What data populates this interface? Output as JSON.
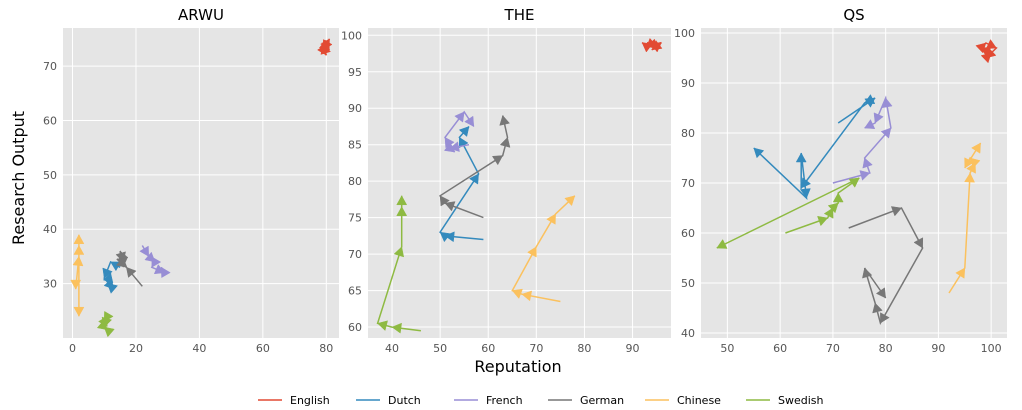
{
  "chart_data": [
    {
      "type": "line",
      "title": "ARWU",
      "xlim": [
        -3,
        84
      ],
      "ylim": [
        20,
        77
      ],
      "xticks": [
        0,
        20,
        40,
        60,
        80
      ],
      "yticks": [
        30,
        40,
        50,
        60,
        70
      ],
      "series": [
        {
          "name": "English",
          "x": [
            80,
            81,
            79,
            80,
            79,
            81
          ],
          "y": [
            74,
            75,
            73,
            72,
            74,
            73
          ]
        },
        {
          "name": "Dutch",
          "x": [
            15,
            12,
            10,
            13,
            11,
            12
          ],
          "y": [
            33,
            34,
            31,
            29,
            30,
            32
          ]
        },
        {
          "name": "French",
          "x": [
            22,
            24,
            26,
            25,
            29,
            28
          ],
          "y": [
            37,
            35,
            34,
            33,
            32,
            33
          ]
        },
        {
          "name": "German",
          "x": [
            22,
            17,
            15,
            16,
            14,
            17
          ],
          "y": [
            29.5,
            33,
            36,
            34,
            34.5,
            33
          ]
        },
        {
          "name": "Chinese",
          "x": [
            1,
            1,
            2,
            2,
            2,
            2
          ],
          "y": [
            30,
            29,
            35,
            37,
            39,
            24
          ]
        },
        {
          "name": "Swedish",
          "x": [
            11,
            10,
            11,
            10,
            11,
            10
          ],
          "y": [
            24,
            23,
            24,
            22,
            21.5,
            22
          ]
        }
      ]
    },
    {
      "type": "line",
      "title": "THE",
      "xlim": [
        35,
        98
      ],
      "ylim": [
        58.5,
        101
      ],
      "xticks": [
        40,
        50,
        60,
        70,
        80,
        90
      ],
      "yticks": [
        60,
        65,
        70,
        75,
        80,
        85,
        90,
        95,
        100
      ],
      "series": [
        {
          "name": "English",
          "x": [
            93,
            95,
            94,
            96,
            93,
            92
          ],
          "y": [
            99,
            98.5,
            98,
            99,
            98.5,
            99
          ]
        },
        {
          "name": "Dutch",
          "x": [
            59,
            51,
            50,
            58,
            54,
            56
          ],
          "y": [
            72,
            72.5,
            73,
            81,
            86,
            87.5
          ]
        },
        {
          "name": "French",
          "x": [
            56,
            52,
            53,
            51,
            55,
            57
          ],
          "y": [
            85,
            84.5,
            84,
            86,
            89.5,
            87.5
          ]
        },
        {
          "name": "German",
          "x": [
            59,
            51,
            50,
            63,
            64,
            63
          ],
          "y": [
            75,
            77,
            78,
            83.5,
            86,
            89
          ]
        },
        {
          "name": "Chinese",
          "x": [
            75,
            67,
            65,
            70,
            74,
            78
          ],
          "y": [
            63.5,
            64.5,
            65,
            71,
            75.5,
            78
          ]
        },
        {
          "name": "Swedish",
          "x": [
            46,
            40,
            37,
            42,
            42,
            42
          ],
          "y": [
            59.5,
            60,
            60.5,
            71,
            76.5,
            78
          ]
        }
      ]
    },
    {
      "type": "line",
      "title": "QS",
      "xlim": [
        45,
        103
      ],
      "ylim": [
        39,
        101
      ],
      "xticks": [
        50,
        60,
        70,
        80,
        90,
        100
      ],
      "yticks": [
        40,
        50,
        60,
        70,
        80,
        90,
        100
      ],
      "series": [
        {
          "name": "English",
          "x": [
            99,
            100,
            98,
            99,
            101,
            99
          ],
          "y": [
            95,
            96,
            97,
            98,
            97,
            95
          ]
        },
        {
          "name": "Dutch",
          "x": [
            71,
            78,
            76,
            64,
            64,
            65,
            55
          ],
          "y": [
            82,
            87,
            86,
            69,
            76,
            67,
            77
          ]
        },
        {
          "name": "French",
          "x": [
            70,
            77,
            76,
            81,
            80,
            78,
            76
          ],
          "y": [
            70,
            72,
            75,
            81,
            87,
            82,
            81
          ]
        },
        {
          "name": "German",
          "x": [
            73,
            83,
            87,
            79,
            78,
            76,
            80
          ],
          "y": [
            61,
            65,
            57,
            42,
            46,
            53,
            47
          ]
        },
        {
          "name": "Chinese",
          "x": [
            92,
            95,
            96,
            97,
            96,
            95,
            98
          ],
          "y": [
            48,
            53,
            72,
            74,
            75,
            73,
            78
          ]
        },
        {
          "name": "Swedish",
          "x": [
            61,
            69,
            70,
            71,
            71,
            75,
            48
          ],
          "y": [
            60,
            63,
            65,
            66,
            68,
            71,
            57
          ]
        }
      ]
    }
  ],
  "colors": {
    "English": "#e24a33",
    "Dutch": "#348abd",
    "French": "#988ed5",
    "German": "#777777",
    "Chinese": "#fbc15e",
    "Swedish": "#8eba42"
  },
  "xlabel": "Reputation",
  "ylabel": "Research Output",
  "legend": [
    "English",
    "Dutch",
    "French",
    "German",
    "Chinese",
    "Swedish"
  ],
  "legend_position": "bottom-center"
}
